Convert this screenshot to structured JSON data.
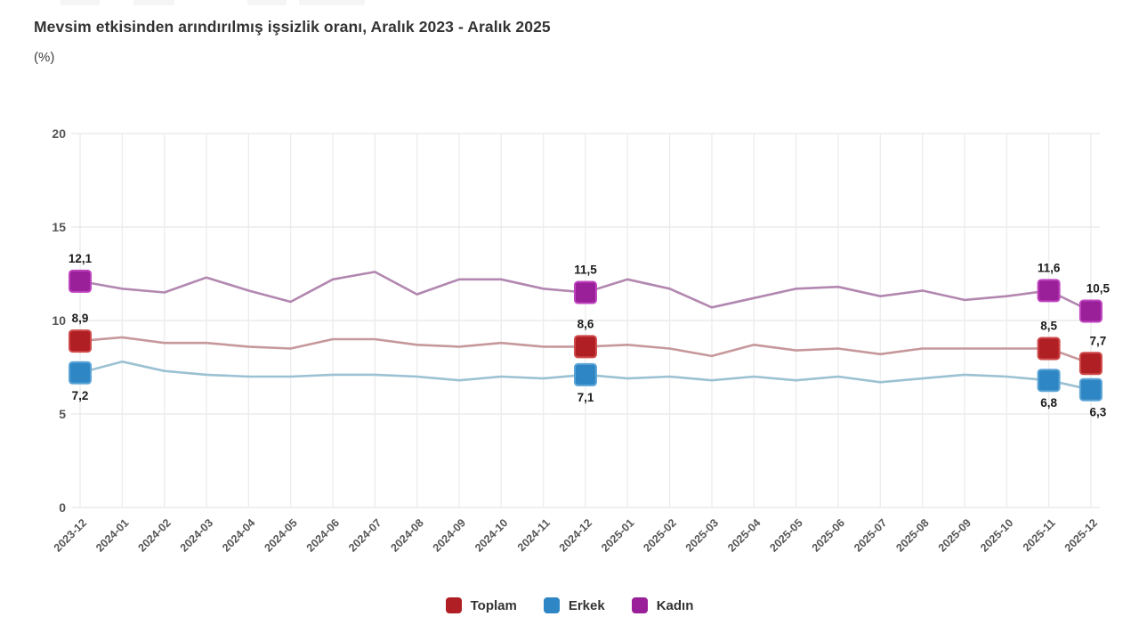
{
  "chart_data": {
    "type": "line",
    "title": "Mevsim etkisinden arındırılmış işsizlik oranı, Aralık 2023 - Aralık 2025",
    "unit": "(%)",
    "grid": true,
    "legend_position": "bottom",
    "y_axis": {
      "min": 0,
      "max": 20,
      "ticks": [
        0,
        5,
        10,
        15,
        20
      ]
    },
    "categories": [
      "2023-12",
      "2024-01",
      "2024-02",
      "2024-03",
      "2024-04",
      "2024-05",
      "2024-06",
      "2024-07",
      "2024-08",
      "2024-09",
      "2024-10",
      "2024-11",
      "2024-12",
      "2025-01",
      "2025-02",
      "2025-03",
      "2025-04",
      "2025-05",
      "2025-06",
      "2025-07",
      "2025-08",
      "2025-09",
      "2025-10",
      "2025-11",
      "2025-12"
    ],
    "series": [
      {
        "id": "toplam",
        "name": "Toplam",
        "marker_color": "#b01f24",
        "marker_border": "#cf4a4a",
        "line_color": "#c6989b",
        "values": [
          8.9,
          9.1,
          8.8,
          8.8,
          8.6,
          8.5,
          9.0,
          9.0,
          8.7,
          8.6,
          8.8,
          8.6,
          8.6,
          8.7,
          8.5,
          8.1,
          8.7,
          8.4,
          8.5,
          8.2,
          8.5,
          8.5,
          8.5,
          8.5,
          7.7
        ],
        "annotations": [
          {
            "index": 0,
            "label": "8,9",
            "position": "above"
          },
          {
            "index": 12,
            "label": "8,6",
            "position": "above"
          },
          {
            "index": 23,
            "label": "8,5",
            "position": "above"
          },
          {
            "index": 24,
            "label": "7,7",
            "position": "above"
          }
        ]
      },
      {
        "id": "erkek",
        "name": "Erkek",
        "marker_color": "#2f86c4",
        "marker_border": "#5ba4d6",
        "line_color": "#9bc1d2",
        "values": [
          7.2,
          7.8,
          7.3,
          7.1,
          7.0,
          7.0,
          7.1,
          7.1,
          7.0,
          6.8,
          7.0,
          6.9,
          7.1,
          6.9,
          7.0,
          6.8,
          7.0,
          6.8,
          7.0,
          6.7,
          6.9,
          7.1,
          7.0,
          6.8,
          6.3
        ],
        "annotations": [
          {
            "index": 0,
            "label": "7,2",
            "position": "below"
          },
          {
            "index": 12,
            "label": "7,1",
            "position": "below"
          },
          {
            "index": 23,
            "label": "6,8",
            "position": "below"
          },
          {
            "index": 24,
            "label": "6,3",
            "position": "below"
          }
        ]
      },
      {
        "id": "kadin",
        "name": "Kadın",
        "marker_color": "#9a2099",
        "marker_border": "#bf44bf",
        "line_color": "#b287b0",
        "values": [
          12.1,
          11.7,
          11.5,
          12.3,
          11.6,
          11.0,
          12.2,
          12.6,
          11.4,
          12.2,
          12.2,
          11.7,
          11.5,
          12.2,
          11.7,
          10.7,
          11.2,
          11.7,
          11.8,
          11.3,
          11.6,
          11.1,
          11.3,
          11.6,
          10.5
        ],
        "annotations": [
          {
            "index": 0,
            "label": "12,1",
            "position": "above"
          },
          {
            "index": 12,
            "label": "11,5",
            "position": "above"
          },
          {
            "index": 23,
            "label": "11,6",
            "position": "above"
          },
          {
            "index": 24,
            "label": "10,5",
            "position": "above"
          }
        ]
      }
    ],
    "legend": [
      "Toplam",
      "Erkek",
      "Kadın"
    ]
  },
  "style": {
    "grid_color_v": "#ececec",
    "grid_color_h": "#e7e7e7",
    "axis_text_color": "#565656",
    "value_label_color": "#1b1b1b"
  }
}
